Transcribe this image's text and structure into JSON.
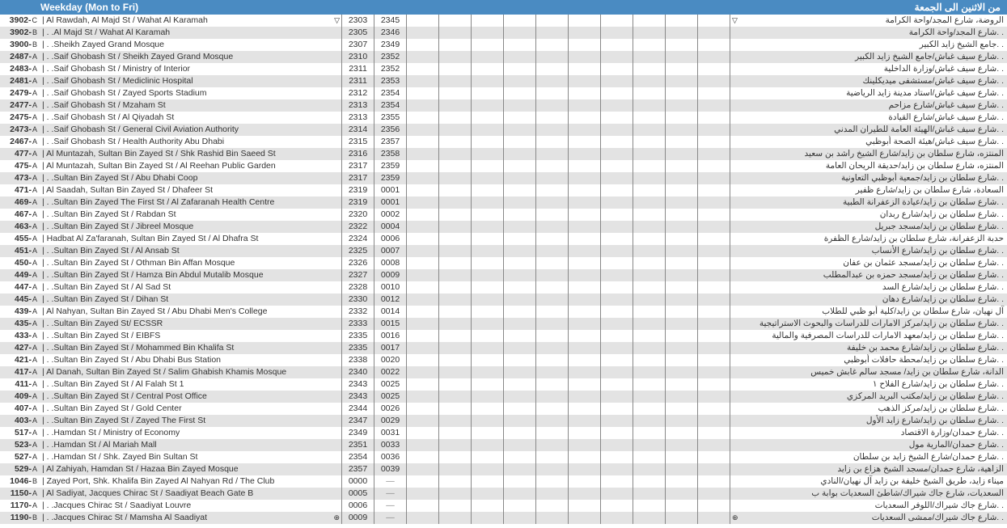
{
  "header": {
    "en": "Weekday (Mon to Fri)",
    "ar": "من الاثنين الى الجمعة"
  },
  "empty_cell_count": 10,
  "colors": {
    "header_bg": "#4a8bc2",
    "header_fg": "#ffffff",
    "row_alt_bg": "#e3e3e3",
    "row_bg": "#ffffff",
    "border": "#888888",
    "text": "#333333"
  },
  "rows": [
    {
      "code": "3902-",
      "suf": "C",
      "en": "| Al Rawdah, Al Majd St / Wahat Al Karamah",
      "t1": "2303",
      "t2": "2345",
      "ar": "الروضة، شارع المجد/واحة الكرامة",
      "marker": "▽",
      "marker_ar": "▽"
    },
    {
      "code": "3902-",
      "suf": "B",
      "en": "| . .Al Majd St / Wahat Al Karamah",
      "t1": "2305",
      "t2": "2346",
      "ar": ". .شارع المجد/واحة الكرامة"
    },
    {
      "code": "3900-",
      "suf": "B",
      "en": "| . .Sheikh Zayed Grand Mosque",
      "t1": "2307",
      "t2": "2349",
      "ar": ". .جامع الشيخ زايد الكبير"
    },
    {
      "code": "2487-",
      "suf": "A",
      "en": "| . .Saif Ghobash St / Sheikh Zayed Grand Mosque",
      "t1": "2310",
      "t2": "2352",
      "ar": ". .شارع سيف غباش/جامع الشيخ زايد الكبير"
    },
    {
      "code": "2483-",
      "suf": "A",
      "en": "| . .Saif Ghobash St / Ministry of Interior",
      "t1": "2311",
      "t2": "2352",
      "ar": ". .شارع سيف غباش/وزارة الداخلية"
    },
    {
      "code": "2481-",
      "suf": "A",
      "en": "| . .Saif Ghobash St / Mediclinic Hospital",
      "t1": "2311",
      "t2": "2353",
      "ar": ". .شارع سيف غباش/مستشفى ميديكلينك"
    },
    {
      "code": "2479-",
      "suf": "A",
      "en": "| . .Saif Ghobash St / Zayed Sports Stadium",
      "t1": "2312",
      "t2": "2354",
      "ar": ". .شارع سيف غباش/استاد مدينة زايد الرياضية"
    },
    {
      "code": "2477-",
      "suf": "A",
      "en": "| . .Saif Ghobash St / Mzaham St",
      "t1": "2313",
      "t2": "2354",
      "ar": ". .شارع سيف غباش/شارع مزاحم"
    },
    {
      "code": "2475-",
      "suf": "A",
      "en": "| . .Saif Ghobash St / Al Qiyadah St",
      "t1": "2313",
      "t2": "2355",
      "ar": ". .شارع سيف غباش/شارع القيادة"
    },
    {
      "code": "2473-",
      "suf": "A",
      "en": "| . .Saif Ghobash St / General Civil Aviation Authority",
      "t1": "2314",
      "t2": "2356",
      "ar": ". .شارع سيف غباش/الهيئة العامة للطيران المدني"
    },
    {
      "code": "2467-",
      "suf": "A",
      "en": "| . .Saif Ghobash St / Health Authority Abu Dhabi",
      "t1": "2315",
      "t2": "2357",
      "ar": ". .شارع سيف غباش/هيئة الصحة أبوظبي"
    },
    {
      "code": "477-",
      "suf": "A",
      "en": "| Al Muntazah, Sultan Bin Zayed St / Shk Rashid Bin Saeed St",
      "t1": "2316",
      "t2": "2358",
      "ar": "المنتزه، شارع سلطان بن زايد/شارع الشيخ راشد بن سعيد"
    },
    {
      "code": "475-",
      "suf": "A",
      "en": "| Al Muntazah, Sultan Bin Zayed St / Al Reehan Public Garden",
      "t1": "2317",
      "t2": "2359",
      "ar": "المنتزه، شارع سلطان بن زايد/حديقة الريحان العامة"
    },
    {
      "code": "473-",
      "suf": "A",
      "en": "| . .Sultan Bin Zayed St / Abu Dhabi Coop",
      "t1": "2317",
      "t2": "2359",
      "ar": ". .شارع سلطان بن زايد/جمعية أبوظبي التعاونية"
    },
    {
      "code": "471-",
      "suf": "A",
      "en": "| Al Saadah, Sultan Bin Zayed St / Dhafeer St",
      "t1": "2319",
      "t2": "0001",
      "ar": "السعادة، شارع سلطان بن زايد/شارع ظفير"
    },
    {
      "code": "469-",
      "suf": "A",
      "en": "| . .Sultan Bin Zayed The First St / Al Zafaranah Health Centre",
      "t1": "2319",
      "t2": "0001",
      "ar": ". .شارع سلطان بن زايد/عيادة الزعفرانة الطبية"
    },
    {
      "code": "467-",
      "suf": "A",
      "en": "| . .Sultan Bin Zayed St / Rabdan St",
      "t1": "2320",
      "t2": "0002",
      "ar": ". .شارع سلطان بن زايد/شارع ربدان"
    },
    {
      "code": "463-",
      "suf": "A",
      "en": "| . .Sultan Bin Zayed St / Jibreel Mosque",
      "t1": "2322",
      "t2": "0004",
      "ar": ". .شارع سلطان بن زايد/مسجد جبريل"
    },
    {
      "code": "455-",
      "suf": "A",
      "en": "| Hadbat Al Za'faranah, Sultan Bin Zayed St / Al Dhafra St",
      "t1": "2324",
      "t2": "0006",
      "ar": "حدبة الزعفرانة، شارع سلطان بن زايد/شارع الظفرة"
    },
    {
      "code": "451-",
      "suf": "A",
      "en": "| . .Sultan Bin Zayed St / Al Ansab St",
      "t1": "2325",
      "t2": "0007",
      "ar": ". .شارع سلطان بن زايد/شارع الأنساب"
    },
    {
      "code": "450-",
      "suf": "A",
      "en": "| . .Sultan Bin Zayed St / Othman Bin Affan Mosque",
      "t1": "2326",
      "t2": "0008",
      "ar": ". .شارع سلطان بن زايد/مسجد عثمان بن عفان"
    },
    {
      "code": "449-",
      "suf": "A",
      "en": "| . .Sultan Bin Zayed St / Hamza Bin Abdul Mutalib Mosque",
      "t1": "2327",
      "t2": "0009",
      "ar": ". .شارع سلطان بن زايد/مسجد حمزه بن عبدالمطلب"
    },
    {
      "code": "447-",
      "suf": "A",
      "en": "| . .Sultan Bin Zayed St / Al Sad St",
      "t1": "2328",
      "t2": "0010",
      "ar": ". .شارع سلطان بن زايد/شارع السد"
    },
    {
      "code": "445-",
      "suf": "A",
      "en": "| . .Sultan Bin Zayed St / Dihan St",
      "t1": "2330",
      "t2": "0012",
      "ar": ". .شارع سلطان بن زايد/شارع دهان"
    },
    {
      "code": "439-",
      "suf": "A",
      "en": "| Al Nahyan, Sultan Bin Zayed St / Abu Dhabi Men's College",
      "t1": "2332",
      "t2": "0014",
      "ar": "آل نهيان، شارع سلطان بن زايد/كلية أبو ظبي للطلاب"
    },
    {
      "code": "435-",
      "suf": "A",
      "en": "| . .Sultan Bin Zayed St/ ECSSR",
      "t1": "2333",
      "t2": "0015",
      "ar": ". .شارع سلطان بن زايد/مركز الامارات للدراسات والبحوث الاستراتيجية"
    },
    {
      "code": "433-",
      "suf": "A",
      "en": "| . .Sultan Bin Zayed St / EIBFS",
      "t1": "2335",
      "t2": "0016",
      "ar": ". .شارع سلطان بن زايد/معهد الامارات للدراسات المصرفية والمالية"
    },
    {
      "code": "427-",
      "suf": "A",
      "en": "| . .Sultan Bin Zayed St / Mohammed Bin Khalifa St",
      "t1": "2335",
      "t2": "0017",
      "ar": ". .شارع سلطان بن زايد/شارع محمد بن خليفة"
    },
    {
      "code": "421-",
      "suf": "A",
      "en": "| . .Sultan Bin Zayed St / Abu Dhabi Bus Station",
      "t1": "2338",
      "t2": "0020",
      "ar": ". .شارع سلطان بن زايد/محطة حافلات أبوظبي"
    },
    {
      "code": "417-",
      "suf": "A",
      "en": "| Al Danah, Sultan Bin Zayed St / Salim Ghabish Khamis Mosque",
      "t1": "2340",
      "t2": "0022",
      "ar": "الدانة، شارع سلطان بن زايد/ مسجد سالم غابش خميس"
    },
    {
      "code": "411-",
      "suf": "A",
      "en": "| . .Sultan Bin Zayed St / Al Falah St 1",
      "t1": "2343",
      "t2": "0025",
      "ar": ". .شارع سلطان بن زايد/شارع الفلاح ١"
    },
    {
      "code": "409-",
      "suf": "A",
      "en": "| . .Sultan Bin Zayed St / Central Post Office",
      "t1": "2343",
      "t2": "0025",
      "ar": ". .شارع سلطان بن زايد/مكتب البريد المركزي"
    },
    {
      "code": "407-",
      "suf": "A",
      "en": "| . .Sultan Bin Zayed St / Gold Center",
      "t1": "2344",
      "t2": "0026",
      "ar": ". .شارع سلطان بن زايد/مركز الذهب"
    },
    {
      "code": "403-",
      "suf": "A",
      "en": "| . .Sultan Bin Zayed St / Zayed The First St",
      "t1": "2347",
      "t2": "0029",
      "ar": ". .شارع سلطان بن زايد/شارع زايد الأول"
    },
    {
      "code": "517-",
      "suf": "A",
      "en": "| . .Hamdan St / Ministry of Economy",
      "t1": "2349",
      "t2": "0031",
      "ar": ". .شارع حمدان/وزارة الاقتصاد"
    },
    {
      "code": "523-",
      "suf": "A",
      "en": "| . .Hamdan St / Al Mariah Mall",
      "t1": "2351",
      "t2": "0033",
      "ar": ". .شارع حمدان/المارية مول"
    },
    {
      "code": "527-",
      "suf": "A",
      "en": "| . .Hamdan St / Shk. Zayed Bin Sultan St",
      "t1": "2354",
      "t2": "0036",
      "ar": ". .شارع حمدان/شارع الشيخ زايد بن سلطان"
    },
    {
      "code": "529-",
      "suf": "A",
      "en": "| Al Zahiyah, Hamdan St / Hazaa Bin Zayed Mosque",
      "t1": "2357",
      "t2": "0039",
      "ar": "الزاهية، شارع حمدان/مسجد الشيخ هزاع بن زايد"
    },
    {
      "code": "1046-",
      "suf": "B",
      "en": "| Zayed Port, Shk. Khalifa Bin Zayed Al Nahyan Rd / The Club",
      "t1": "0000",
      "t2": "—",
      "ar": "ميناء زايد، طريق الشيخ خليفة بن زايد آل نهيان/النادي"
    },
    {
      "code": "1150-",
      "suf": "A",
      "en": "| Al Sadiyat, Jacques Chirac St / Saadiyat Beach Gate B",
      "t1": "0005",
      "t2": "—",
      "ar": "السعديات، شارع جاك شيراك/شاطئ السعديات بوابة ب"
    },
    {
      "code": "1170-",
      "suf": "A",
      "en": "| . .Jacques Chirac St / Saadiyat Louvre",
      "t1": "0006",
      "t2": "—",
      "ar": ". .شارع جاك شيراك/اللوفر السعديات"
    },
    {
      "code": "1190-",
      "suf": "B",
      "en": "| . .Jacques Chirac St / Mamsha Al Saadiyat",
      "t1": "0009",
      "t2": "—",
      "ar": ". .شارع جاك شيراك/ممشى السعديات",
      "marker": "⊕",
      "marker_ar": "⊕"
    }
  ]
}
